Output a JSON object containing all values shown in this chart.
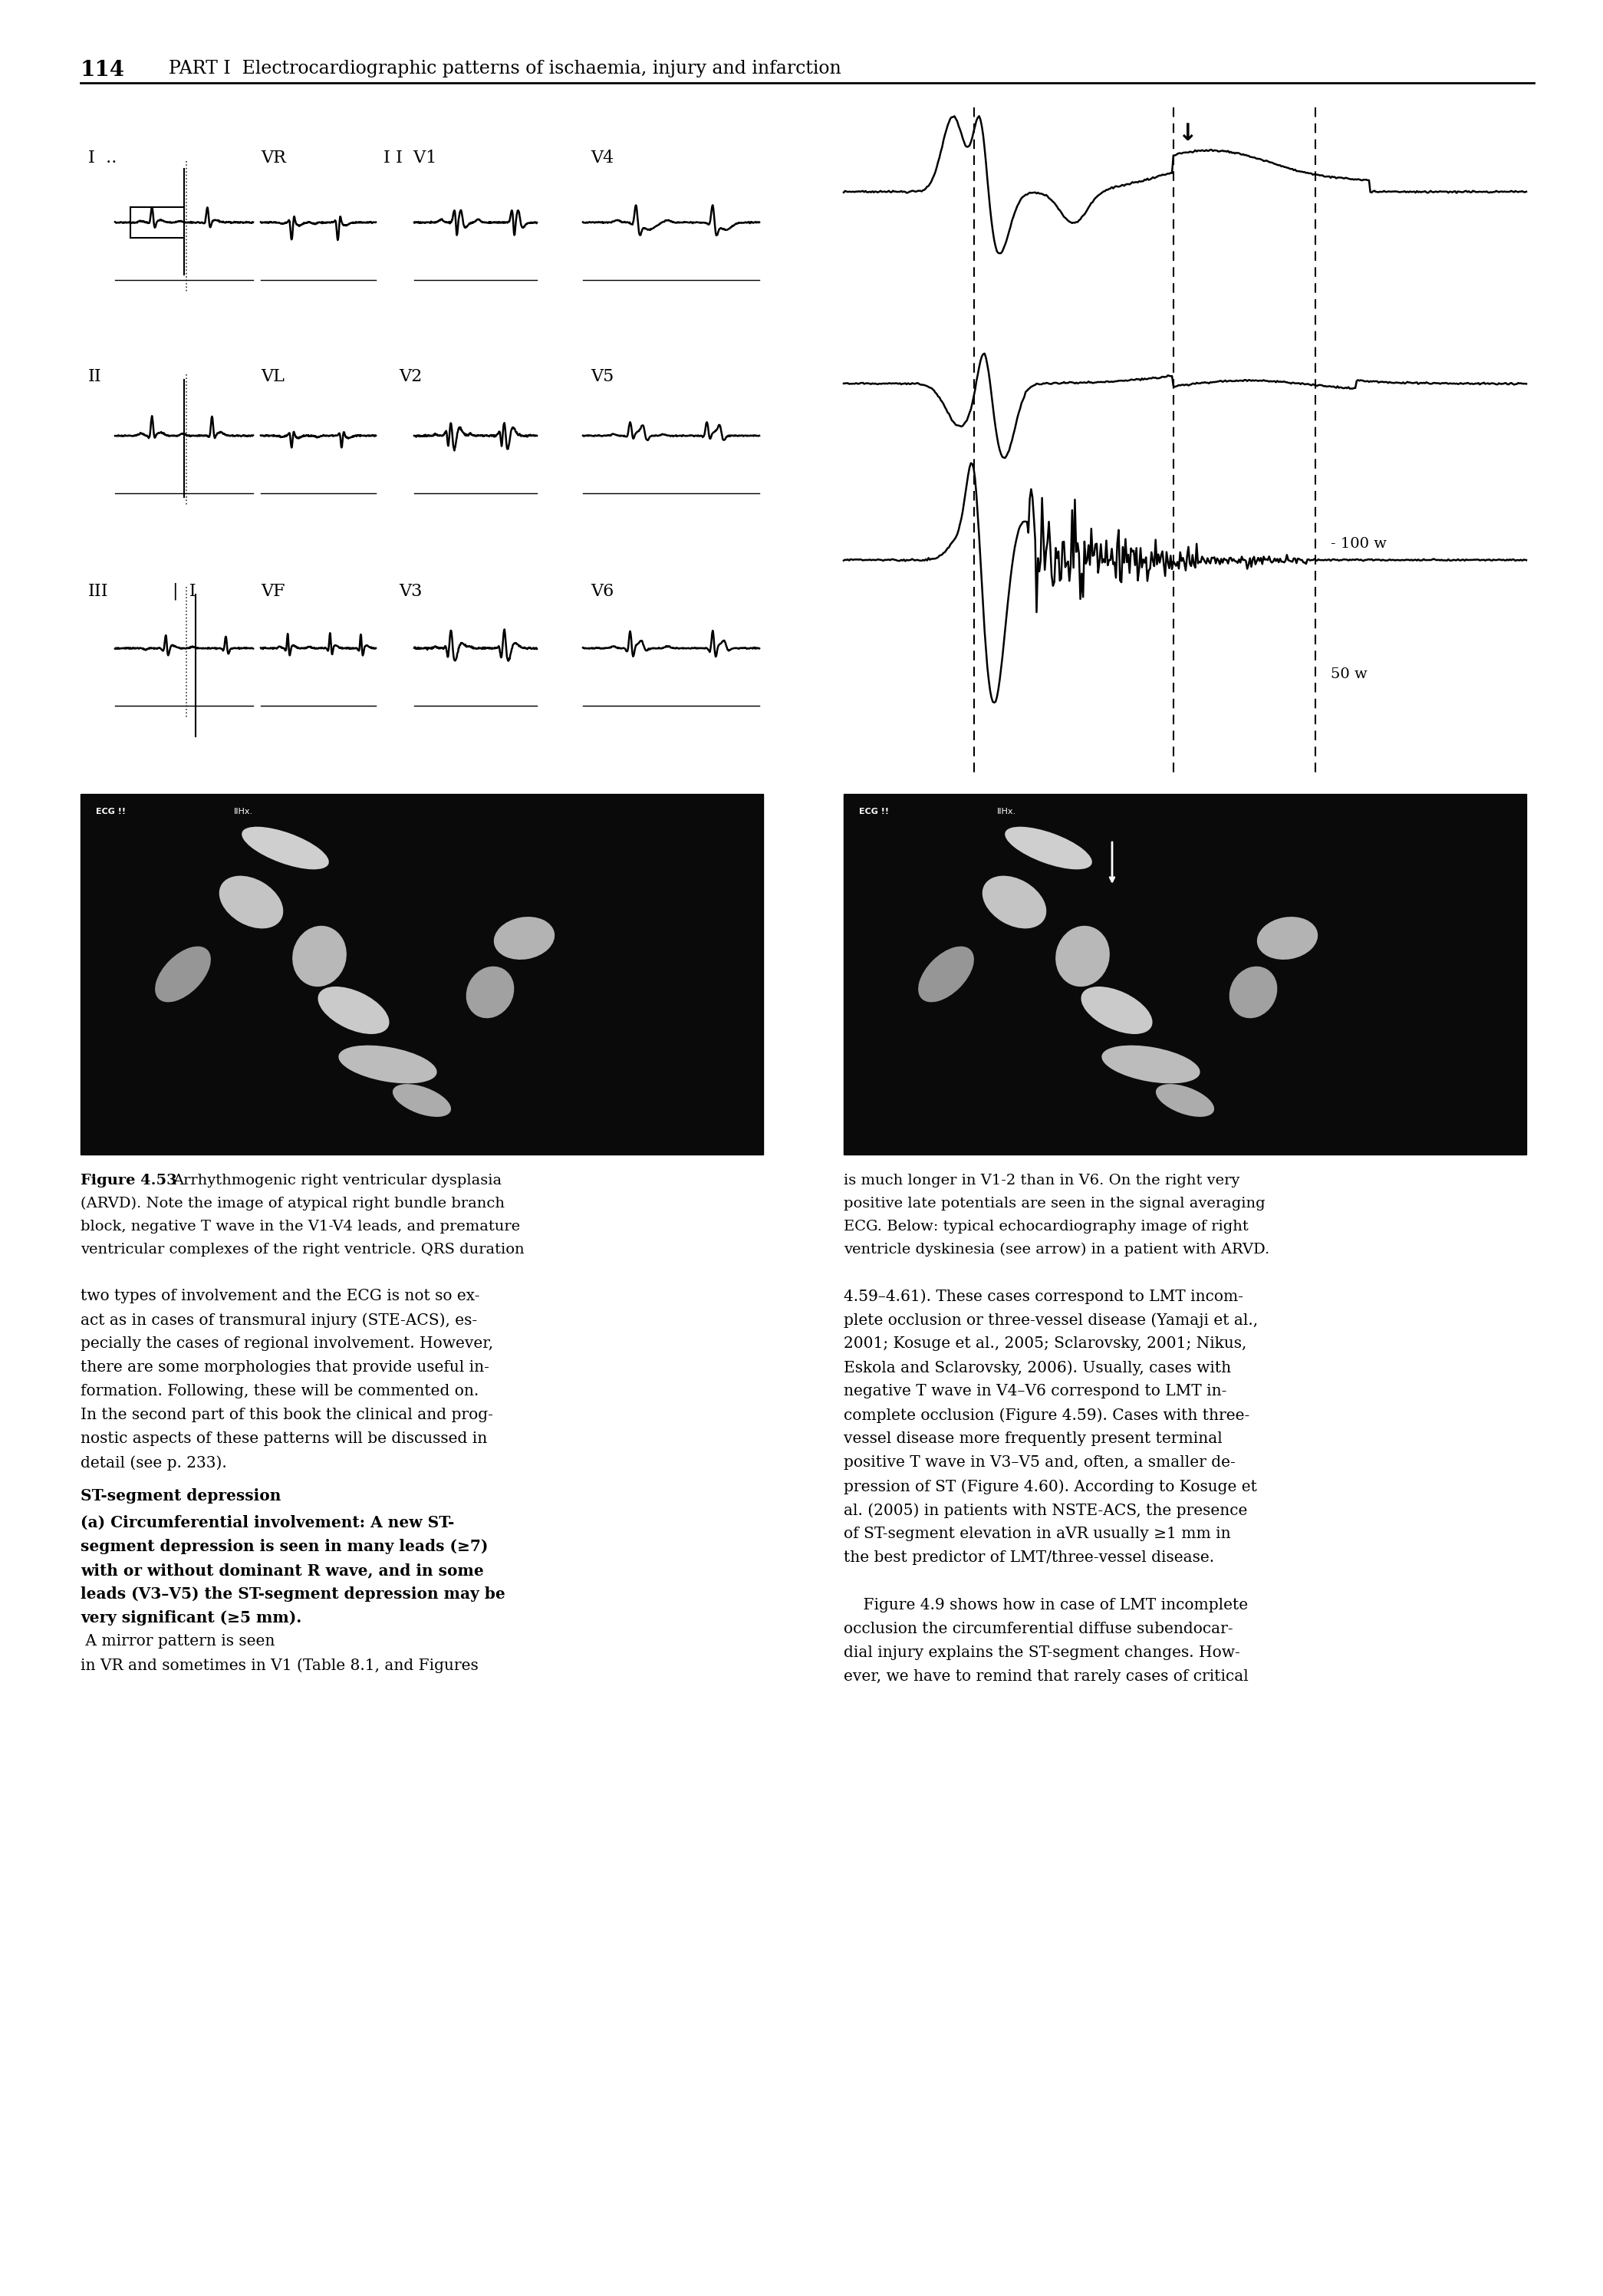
{
  "page_number": "114",
  "header_text": "PART I  Electrocardiographic patterns of ischaemia, injury and infarction",
  "figure_caption_left": "Figure 4.53  Arrhythmogenic right ventricular dysplasia\n(ARVD). Note the image of atypical right bundle branch\nblock, negative T wave in the V1-V4 leads, and premature\nventricular complexes of the right ventricle. QRS duration",
  "figure_caption_right": "is much longer in V1-2 than in V6. On the right very\npositive late potentials are seen in the signal averaging\nECG. Below: typical echocardiography image of right\nventricle dyskinesia (see arrow) in a patient with ARVD.",
  "body_text_left": "two types of involvement and the ECG is not so ex-\nact as in cases of transmural injury (STE-ACS), es-\npecially the cases of regional involvement. However,\nthere are some morphologies that provide useful in-\nformation. Following, these will be commented on.\nIn the second part of this book the clinical and prog-\nnostic aspects of these patterns will be discussed in\ndetail (see p. 233).",
  "body_heading": "ST-segment depression",
  "body_subheading_bold": "(a) Circumferential involvement: A new ST-\nsegment depression is seen in many leads (≥7)\nwith or without dominant R wave, and in some\nleads (V3–V5) the ST-segment depression may be\nvery significant (≥5 mm).",
  "body_text_left2": " A mirror pattern is seen\nin VR and sometimes in V1 (Table 8.1, and Figures",
  "body_text_right": "4.59–4.61). These cases correspond to LMT incom-\nplete occlusion or three-vessel disease (Yamaji et al.,\n2001; Kosuge et al., 2005; Sclarovsky, 2001; Nikus,\nEskola and Sclarovsky, 2006). Usually, cases with\nnegative T wave in V4–V6 correspond to LMT in-\ncomplete occlusion (Figure 4.59). Cases with three-\nvessel disease more frequently present terminal\npositive T wave in V3–V5 and, often, a smaller de-\npression of ST (Figure 4.60). According to Kosuge et\nal. (2005) in patients with NSTE-ACS, the presence\nof ST-segment elevation in aVR usually ≥1 mm in\nthe best predictor of LMT/three-vessel disease.\n\n    Figure 4.9 shows how in case of LMT incomplete\nocclusion the circumferential diffuse subendocar-\ndial injury explains the ST-segment changes. How-\never, we have to remind that rarely cases of critical",
  "bg_color": "#ffffff",
  "text_color": "#000000"
}
